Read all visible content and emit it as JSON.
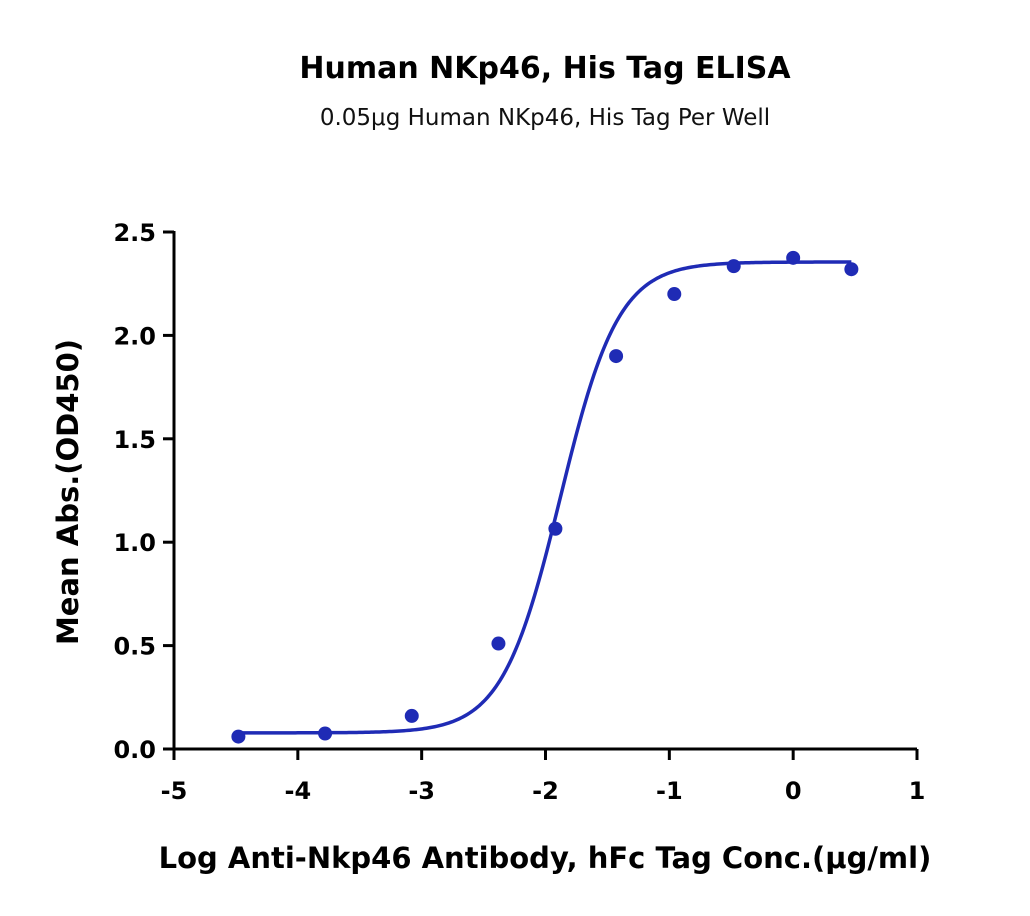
{
  "chart_data": {
    "type": "scatter",
    "title": "Human NKp46, His Tag ELISA",
    "subtitle": "0.05μg Human NKp46, His Tag Per Well",
    "xlabel": "Log Anti-Nkp46 Antibody, hFc Tag Conc.(μg/ml)",
    "ylabel": "Mean Abs.(OD450)",
    "xlim": [
      -5,
      1
    ],
    "ylim": [
      0,
      2.5
    ],
    "x_ticks": [
      "-5",
      "-4",
      "-3",
      "-2",
      "-1",
      "0",
      "1"
    ],
    "y_ticks": [
      "0.0",
      "0.5",
      "1.0",
      "1.5",
      "2.0",
      "2.5"
    ],
    "grid": false,
    "legend": "none",
    "color": "#1f2bb5",
    "series": [
      {
        "x": [
          -4.48,
          -3.78,
          -3.08,
          -2.38,
          -1.92,
          -1.43,
          -0.96,
          -0.48,
          0.0,
          0.47
        ],
        "y": [
          0.06,
          0.075,
          0.16,
          0.51,
          1.065,
          1.9,
          2.2,
          2.335,
          2.375,
          2.32
        ],
        "fit": "4PL sigmoid"
      }
    ]
  }
}
